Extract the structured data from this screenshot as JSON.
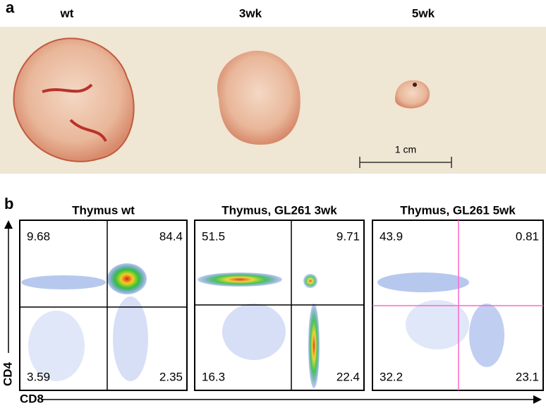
{
  "panel_a": {
    "label": "a",
    "samples": [
      "wt",
      "3wk",
      "5wk"
    ],
    "scale_bar": "1 cm"
  },
  "panel_b": {
    "label": "b",
    "y_axis": "CD4",
    "x_axis": "CD8",
    "plots": [
      {
        "title": "Thymus wt",
        "quadrants": [
          9.68,
          84.4,
          3.59,
          2.35
        ]
      },
      {
        "title": "Thymus, GL261 3wk",
        "quadrants": [
          51.5,
          9.71,
          16.3,
          22.4
        ]
      },
      {
        "title": "Thymus, GL261 5wk",
        "quadrants": [
          43.9,
          0.81,
          32.2,
          23.1
        ]
      }
    ]
  }
}
